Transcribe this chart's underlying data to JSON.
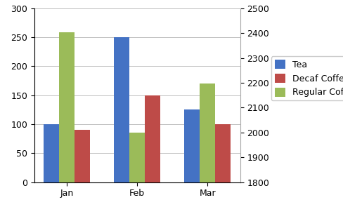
{
  "months": [
    "Jan",
    "Feb",
    "Mar"
  ],
  "tea": [
    100,
    250,
    125
  ],
  "decaf_coffee": [
    90,
    150,
    100
  ],
  "regular_coffee": [
    258,
    85,
    170
  ],
  "tea_color": "#4472C4",
  "decaf_color": "#BE4B48",
  "regular_color": "#9BBB59",
  "left_ylim": [
    0,
    300
  ],
  "left_yticks": [
    0,
    50,
    100,
    150,
    200,
    250,
    300
  ],
  "right_ylim": [
    1800,
    2500
  ],
  "right_yticks": [
    1800,
    1900,
    2000,
    2100,
    2200,
    2300,
    2400,
    2500
  ],
  "legend_labels": [
    "Tea",
    "Decaf Coffee",
    "Regular Coffee"
  ],
  "bar_width": 0.22,
  "background_color": "#FFFFFF",
  "grid_color": "#C0C0C0",
  "tick_fontsize": 9,
  "legend_fontsize": 9
}
